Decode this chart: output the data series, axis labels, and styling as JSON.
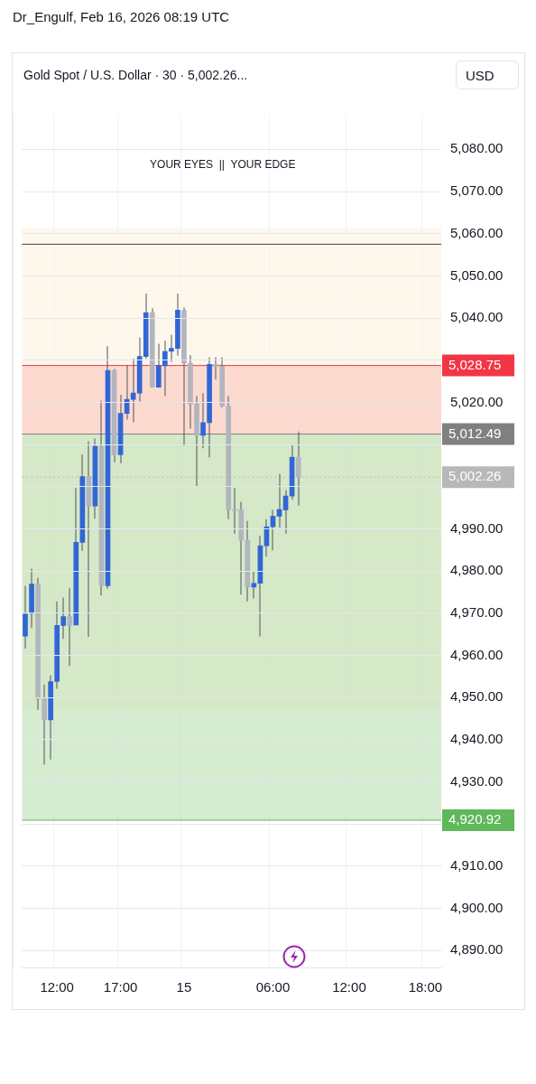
{
  "chart_data": {
    "type": "candlestick",
    "title": "Gold Spot / U.S. Dollar · 30 · 5,002.26...",
    "subtitle": "Dr_Engulf, Feb 16, 2026 08:19 UTC",
    "ylabel": "USD",
    "annotations": [
      "YOUR EYES  ||  YOUR EDGE"
    ],
    "categories": [
      null,
      null,
      null,
      null,
      null,
      "12:00",
      null,
      null,
      null,
      null,
      null,
      null,
      null,
      null,
      null,
      "17:00",
      null,
      null,
      null,
      null,
      null,
      null,
      null,
      null,
      null,
      "15",
      null,
      null,
      null,
      null,
      null,
      null,
      null,
      null,
      null,
      null,
      null,
      null,
      null,
      "06:00",
      null,
      null,
      null,
      null,
      null,
      null,
      null,
      null,
      null,
      null,
      null,
      "12:00",
      null,
      null,
      null,
      null,
      null,
      null,
      null,
      null,
      null,
      null,
      null,
      "18:00",
      null,
      null
    ],
    "ohlc": [
      [
        4964.6,
        4976.5,
        4961.6,
        4969.8
      ],
      [
        4970.0,
        4980.6,
        4966.5,
        4976.9
      ],
      [
        4976.9,
        4978.4,
        4947.1,
        4949.7
      ],
      [
        4949.7,
        4953.1,
        4934.1,
        4944.7
      ],
      [
        4944.7,
        4955.3,
        4935.3,
        4953.8
      ],
      [
        4953.8,
        4972.8,
        4952.1,
        4967.1
      ],
      [
        4967.1,
        4973.7,
        4963.9,
        4969.2
      ],
      [
        4969.2,
        4975.9,
        4957.5,
        4967.1
      ],
      [
        4967.2,
        4999.7,
        4967.2,
        4986.8
      ],
      [
        4986.8,
        5007.6,
        4984.8,
        5002.4
      ],
      [
        5002.4,
        5010.8,
        4964.4,
        4995.4
      ],
      [
        4995.4,
        5011.4,
        4992.4,
        5009.6
      ],
      [
        5009.6,
        5020.4,
        4974.2,
        4976.5
      ],
      [
        4976.5,
        5033.3,
        4975.8,
        5027.6
      ],
      [
        5027.6,
        5027.9,
        5005.8,
        5007.6
      ],
      [
        5007.6,
        5021.8,
        5005.6,
        5017.4
      ],
      [
        5017.4,
        5028.9,
        5015.9,
        5020.7
      ],
      [
        5020.7,
        5030.4,
        5015.3,
        5022.2
      ],
      [
        5022.2,
        5035.4,
        5020.2,
        5030.9
      ],
      [
        5030.9,
        5045.8,
        5030.4,
        5041.3
      ],
      [
        5041.3,
        5042.3,
        5023.6,
        5023.6
      ],
      [
        5023.6,
        5033.9,
        5023.6,
        5028.7
      ],
      [
        5028.7,
        5034.6,
        5021.5,
        5032.1
      ],
      [
        5032.1,
        5036.0,
        5029.6,
        5032.8
      ],
      [
        5032.8,
        5045.8,
        5031.1,
        5041.9
      ],
      [
        5041.8,
        5042.5,
        5009.7,
        5029.3
      ],
      [
        5029.3,
        5031.2,
        5013.8,
        5019.6
      ],
      [
        5019.6,
        5021.5,
        5000.0,
        5012.2
      ],
      [
        5012.2,
        5022.2,
        5009.1,
        5015.2
      ],
      [
        5015.2,
        5030.7,
        5007.0,
        5029.0
      ],
      [
        5029.0,
        5030.7,
        5025.4,
        5028.5
      ],
      [
        5028.6,
        5030.7,
        5018.8,
        5019.2
      ],
      [
        5019.2,
        5021.5,
        4992.3,
        4994.5
      ],
      [
        4994.6,
        4999.7,
        4988.8,
        4994.3
      ],
      [
        4994.6,
        4996.4,
        4974.4,
        4987.3
      ],
      [
        4987.3,
        4991.9,
        4972.8,
        4976.2
      ],
      [
        4976.2,
        4979.9,
        4973.5,
        4977.1
      ],
      [
        4977.1,
        4988.4,
        4964.5,
        4986.0
      ],
      [
        4986.0,
        4992.3,
        4983.4,
        4990.5
      ],
      [
        4990.5,
        4994.5,
        4984.9,
        4993.0
      ],
      [
        4993.0,
        5003.0,
        4990.3,
        4994.6
      ],
      [
        4994.5,
        4999.2,
        4988.9,
        4997.8
      ],
      [
        4997.8,
        5009.8,
        4996.9,
        5007.0
      ],
      [
        5007.0,
        5013.1,
        4995.5,
        5002.26
      ],
      null,
      null,
      null,
      null,
      null,
      null,
      null,
      null,
      null,
      null,
      null,
      null,
      null,
      null,
      null,
      null,
      null,
      null,
      null,
      null,
      null,
      null
    ],
    "colors": [
      "#3166d6",
      "#3166d6",
      "#b2b5be",
      "#b2b5be",
      "#3166d6",
      "#3166d6",
      "#3166d6",
      "#b2b5be",
      "#3166d6",
      "#3166d6",
      "#b2b5be",
      "#3166d6",
      "#b2b5be",
      "#3166d6",
      "#b2b5be",
      "#3166d6",
      "#3166d6",
      "#3166d6",
      "#3166d6",
      "#3166d6",
      "#b2b5be",
      "#3166d6",
      "#3166d6",
      "#3166d6",
      "#3166d6",
      "#b2b5be",
      "#b2b5be",
      "#b2b5be",
      "#3166d6",
      "#3166d6",
      "#b2b5be",
      "#b2b5be",
      "#b2b5be",
      "#b2b5be",
      "#b2b5be",
      "#b2b5be",
      "#3166d6",
      "#3166d6",
      "#3166d6",
      "#3166d6",
      "#3166d6",
      "#3166d6",
      "#3166d6",
      "#b2b5be",
      null,
      null,
      null,
      null,
      null,
      null,
      null,
      null,
      null,
      null,
      null,
      null,
      null,
      null,
      null,
      null,
      null,
      null,
      null,
      null,
      null,
      null
    ],
    "ylim": [
      4886,
      5088
    ],
    "yticks": [
      {
        "value": 4890,
        "label": "4,890.00"
      },
      {
        "value": 4900,
        "label": "4,900.00"
      },
      {
        "value": 4910,
        "label": "4,910.00"
      },
      {
        "value": 4920,
        "label": null
      },
      {
        "value": 4930,
        "label": "4,930.00"
      },
      {
        "value": 4940,
        "label": "4,940.00"
      },
      {
        "value": 4950,
        "label": "4,950.00"
      },
      {
        "value": 4960,
        "label": "4,960.00"
      },
      {
        "value": 4970,
        "label": "4,970.00"
      },
      {
        "value": 4980,
        "label": "4,980.00"
      },
      {
        "value": 4990,
        "label": "4,990.00"
      },
      {
        "value": 5000,
        "label": null
      },
      {
        "value": 5010,
        "label": null
      },
      {
        "value": 5020,
        "label": "5,020.00"
      },
      {
        "value": 5030,
        "label": null
      },
      {
        "value": 5040,
        "label": "5,040.00"
      },
      {
        "value": 5050,
        "label": "5,050.00"
      },
      {
        "value": 5060,
        "label": "5,060.00"
      },
      {
        "value": 5070,
        "label": "5,070.00"
      },
      {
        "value": 5080,
        "label": "5,080.00"
      }
    ],
    "grid": true,
    "legend": false,
    "bands": [
      {
        "axis": "y",
        "from": 4947.0,
        "to": 5061.5,
        "color": "#fdf1dd"
      },
      {
        "axis": "y",
        "from": 5012.49,
        "to": 5028.75,
        "color": "#f9c2b8"
      },
      {
        "axis": "y",
        "from": 4920.92,
        "to": 5012.49,
        "color": "#b3dcab"
      }
    ],
    "ref_lines": [
      {
        "axis": "y",
        "value": 5057.5,
        "color": "#444444"
      },
      {
        "axis": "y",
        "value": 5028.75,
        "label": "5,028.75",
        "color": "#f23645"
      },
      {
        "axis": "y",
        "value": 5012.49,
        "label": "5,012.49",
        "color": "#808080"
      },
      {
        "axis": "y",
        "value": 5002.26,
        "label": "5,002.26",
        "color": "#b8b8b8",
        "line_style": "dotted"
      },
      {
        "axis": "y",
        "value": 4920.92,
        "label": "4,920.92",
        "color": "#5fb85a"
      }
    ]
  }
}
